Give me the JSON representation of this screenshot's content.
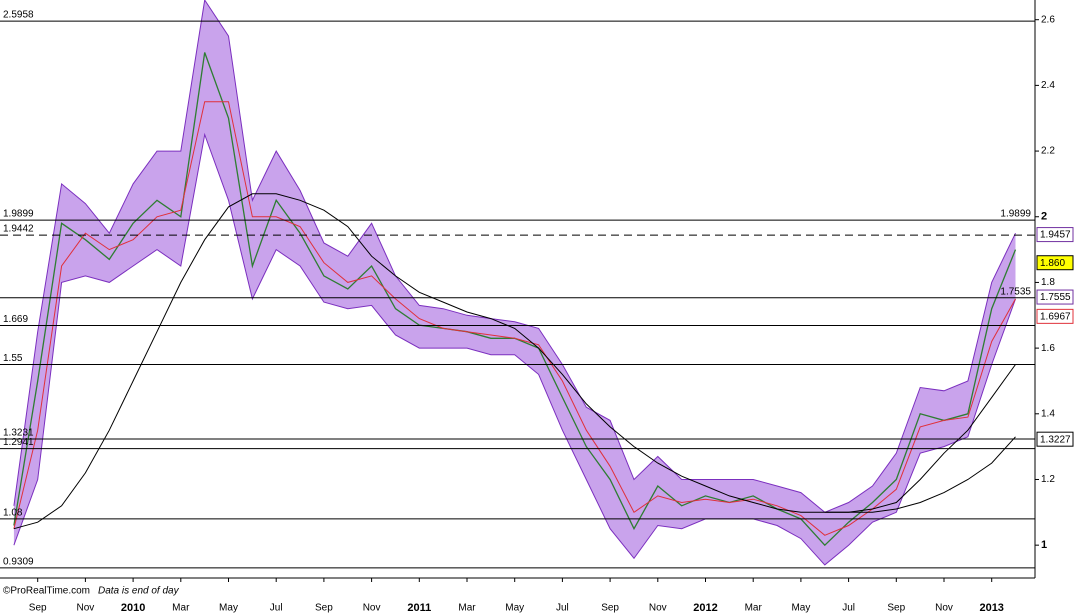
{
  "chart_data": {
    "type": "line",
    "footer_brand": "©ProRealTime.com",
    "footer_note": "Data is end of day",
    "x": [
      "2009-08",
      "2009-09",
      "2009-10",
      "2009-11",
      "2009-12",
      "2010-01",
      "2010-02",
      "2010-03",
      "2010-04",
      "2010-05",
      "2010-06",
      "2010-07",
      "2010-08",
      "2010-09",
      "2010-10",
      "2010-11",
      "2010-12",
      "2011-01",
      "2011-02",
      "2011-03",
      "2011-04",
      "2011-05",
      "2011-06",
      "2011-07",
      "2011-08",
      "2011-09",
      "2011-10",
      "2011-11",
      "2011-12",
      "2012-01",
      "2012-02",
      "2012-03",
      "2012-04",
      "2012-05",
      "2012-06",
      "2012-07",
      "2012-08",
      "2012-09",
      "2012-10",
      "2012-11",
      "2012-12",
      "2013-01",
      "2013-02"
    ],
    "xlim": [
      "2009-07",
      "2013-02"
    ],
    "xticks": [
      {
        "value": "2009-09",
        "label": "Sep"
      },
      {
        "value": "2009-11",
        "label": "Nov"
      },
      {
        "value": "2010-01",
        "label": "2010"
      },
      {
        "value": "2010-03",
        "label": "Mar"
      },
      {
        "value": "2010-05",
        "label": "May"
      },
      {
        "value": "2010-07",
        "label": "Jul"
      },
      {
        "value": "2010-09",
        "label": "Sep"
      },
      {
        "value": "2010-11",
        "label": "Nov"
      },
      {
        "value": "2011-01",
        "label": "2011"
      },
      {
        "value": "2011-03",
        "label": "Mar"
      },
      {
        "value": "2011-05",
        "label": "May"
      },
      {
        "value": "2011-07",
        "label": "Jul"
      },
      {
        "value": "2011-09",
        "label": "Sep"
      },
      {
        "value": "2011-11",
        "label": "Nov"
      },
      {
        "value": "2012-01",
        "label": "2012"
      },
      {
        "value": "2012-03",
        "label": "Mar"
      },
      {
        "value": "2012-05",
        "label": "May"
      },
      {
        "value": "2012-07",
        "label": "Jul"
      },
      {
        "value": "2012-09",
        "label": "Sep"
      },
      {
        "value": "2012-11",
        "label": "Nov"
      },
      {
        "value": "2013-01",
        "label": "2013"
      }
    ],
    "ylim": [
      0.9,
      2.66
    ],
    "yticks": [
      1,
      1.2,
      1.4,
      1.6,
      1.8,
      2,
      2.2,
      2.4,
      2.6
    ],
    "series": [
      {
        "role": "band-upper",
        "color": "#7b2fbf",
        "values": [
          1.12,
          1.65,
          2.1,
          2.04,
          1.95,
          2.1,
          2.2,
          2.2,
          2.66,
          2.55,
          2.05,
          2.2,
          2.08,
          1.92,
          1.88,
          1.98,
          1.82,
          1.73,
          1.72,
          1.7,
          1.69,
          1.68,
          1.66,
          1.55,
          1.42,
          1.38,
          1.2,
          1.27,
          1.2,
          1.2,
          1.2,
          1.2,
          1.18,
          1.16,
          1.1,
          1.13,
          1.18,
          1.28,
          1.48,
          1.47,
          1.5,
          1.8,
          1.95
        ]
      },
      {
        "role": "band-lower",
        "color": "#7b2fbf",
        "values": [
          1.0,
          1.2,
          1.8,
          1.82,
          1.8,
          1.85,
          1.9,
          1.85,
          2.25,
          2.05,
          1.75,
          1.9,
          1.85,
          1.74,
          1.72,
          1.73,
          1.64,
          1.6,
          1.6,
          1.6,
          1.58,
          1.58,
          1.52,
          1.35,
          1.2,
          1.05,
          0.96,
          1.06,
          1.05,
          1.08,
          1.08,
          1.08,
          1.06,
          1.02,
          0.94,
          1.0,
          1.07,
          1.1,
          1.28,
          1.3,
          1.33,
          1.55,
          1.75
        ]
      },
      {
        "role": "price",
        "color": "#2e7d32",
        "values": [
          1.06,
          1.5,
          1.98,
          1.93,
          1.87,
          1.98,
          2.05,
          2.0,
          2.5,
          2.3,
          1.85,
          2.05,
          1.95,
          1.82,
          1.78,
          1.85,
          1.72,
          1.67,
          1.66,
          1.65,
          1.63,
          1.63,
          1.6,
          1.45,
          1.3,
          1.2,
          1.05,
          1.18,
          1.12,
          1.15,
          1.13,
          1.15,
          1.11,
          1.08,
          1.0,
          1.07,
          1.13,
          1.2,
          1.4,
          1.38,
          1.4,
          1.72,
          1.9
        ]
      },
      {
        "role": "ma",
        "color": "#e0303a",
        "values": [
          1.05,
          1.35,
          1.85,
          1.95,
          1.9,
          1.93,
          2.0,
          2.02,
          2.35,
          2.35,
          2.0,
          2.0,
          1.97,
          1.86,
          1.8,
          1.82,
          1.75,
          1.69,
          1.66,
          1.65,
          1.64,
          1.63,
          1.61,
          1.5,
          1.35,
          1.24,
          1.1,
          1.15,
          1.13,
          1.14,
          1.13,
          1.14,
          1.12,
          1.09,
          1.03,
          1.06,
          1.11,
          1.17,
          1.36,
          1.38,
          1.39,
          1.62,
          1.75
        ]
      },
      {
        "role": "ma",
        "color": "#000000",
        "values": [
          1.05,
          1.07,
          1.12,
          1.22,
          1.35,
          1.5,
          1.65,
          1.8,
          1.93,
          2.03,
          2.07,
          2.07,
          2.05,
          2.02,
          1.97,
          1.88,
          1.82,
          1.77,
          1.74,
          1.71,
          1.69,
          1.66,
          1.6,
          1.52,
          1.43,
          1.36,
          1.3,
          1.25,
          1.21,
          1.18,
          1.15,
          1.13,
          1.11,
          1.1,
          1.1,
          1.1,
          1.11,
          1.13,
          1.2,
          1.28,
          1.35,
          1.45,
          1.55
        ]
      },
      {
        "role": "ma",
        "color": "#000000",
        "values": [
          null,
          null,
          null,
          null,
          null,
          null,
          null,
          null,
          null,
          null,
          null,
          null,
          null,
          null,
          null,
          null,
          null,
          null,
          null,
          null,
          null,
          null,
          null,
          null,
          null,
          null,
          null,
          null,
          null,
          null,
          null,
          null,
          null,
          null,
          1.1,
          1.1,
          1.1,
          1.11,
          1.13,
          1.16,
          1.2,
          1.25,
          1.33
        ]
      }
    ],
    "levels": [
      {
        "value": 2.5958,
        "style": "solid",
        "label_side": "left"
      },
      {
        "value": 1.9899,
        "style": "solid",
        "label_side": "both"
      },
      {
        "value": 1.9442,
        "style": "dashed",
        "label_side": "left"
      },
      {
        "value": 1.7535,
        "style": "solid",
        "label_side": "right"
      },
      {
        "value": 1.669,
        "style": "solid",
        "label_side": "left"
      },
      {
        "value": 1.55,
        "style": "solid",
        "label_side": "left"
      },
      {
        "value": 1.3231,
        "style": "solid",
        "label_side": "left"
      },
      {
        "value": 1.2941,
        "style": "solid",
        "label_side": "left"
      },
      {
        "value": 1.08,
        "style": "solid",
        "label_side": "left"
      },
      {
        "value": 0.9309,
        "style": "solid",
        "label_side": "left"
      }
    ],
    "tags": [
      {
        "value": 1.9457,
        "color": "#7030a0",
        "background": "#ffffff"
      },
      {
        "value": {
          "value": 1.86,
          "label": "1.860"
        },
        "color": "#000000",
        "background": "#ffff00"
      },
      {
        "value": 1.7555,
        "color": "#7030a0",
        "background": "#ffffff"
      },
      {
        "value": 1.6967,
        "color": "#e0303a",
        "background": "#ffffff"
      },
      {
        "value": 1.3227,
        "color": "#000000",
        "background": "#ffffff"
      }
    ]
  }
}
